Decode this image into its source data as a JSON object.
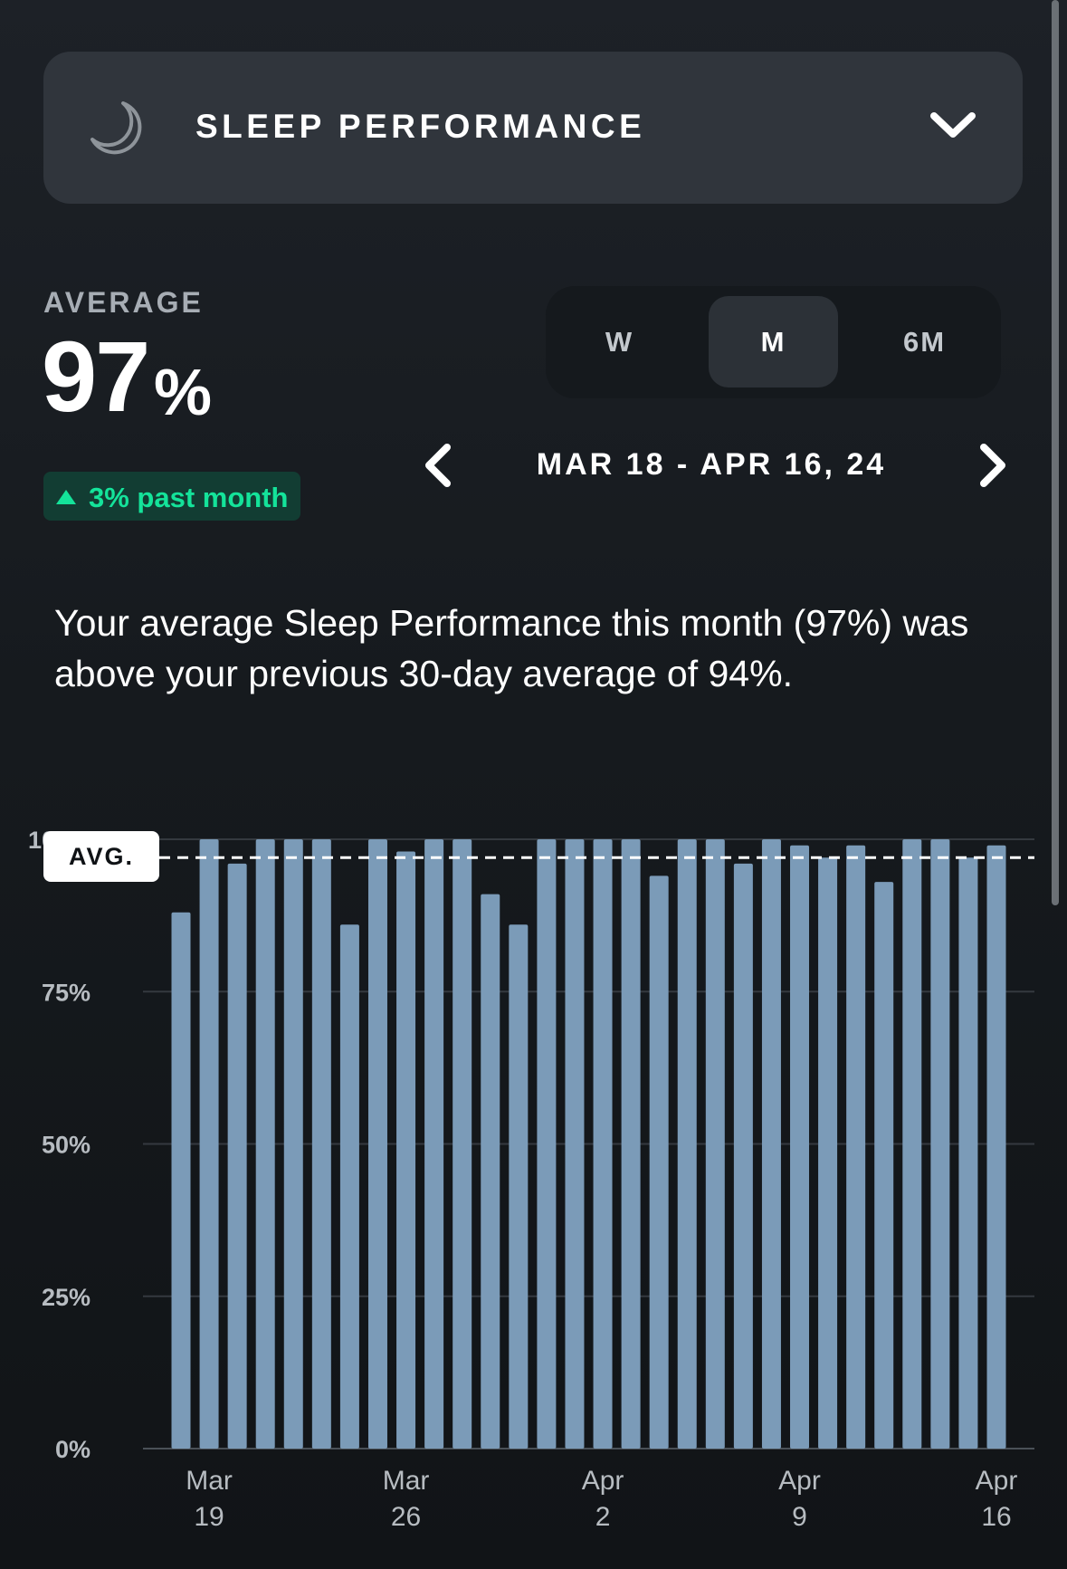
{
  "header": {
    "title": "SLEEP PERFORMANCE",
    "icon": "moon-icon",
    "dropdown_icon": "chevron-down-icon"
  },
  "average": {
    "label": "AVERAGE",
    "value": "97",
    "unit": "%",
    "trend": {
      "text": "3% past month",
      "direction": "up",
      "color": "#14e39a"
    }
  },
  "range_tabs": [
    {
      "label": "W",
      "active": false
    },
    {
      "label": "M",
      "active": true
    },
    {
      "label": "6M",
      "active": false
    }
  ],
  "date_nav": {
    "range": "MAR 18 - APR 16, 24",
    "prev_icon": "chevron-left-icon",
    "next_icon": "chevron-right-icon"
  },
  "description": "Your average Sleep Performance this month (97%) was above your previous 30-day average of 94%.",
  "avg_tag": "AVG.",
  "colors": {
    "bar": "#7b9bb8",
    "accent": "#14e39a"
  },
  "chart_data": {
    "type": "bar",
    "y_unit": "%",
    "ylim": [
      0,
      100
    ],
    "y_ticks": [
      "0%",
      "25%",
      "50%",
      "75%",
      "100%"
    ],
    "grid": true,
    "average_line": 97,
    "x_ticks": [
      {
        "month": "Mar",
        "day": "19"
      },
      {
        "month": "Mar",
        "day": "26"
      },
      {
        "month": "Apr",
        "day": "2"
      },
      {
        "month": "Apr",
        "day": "9"
      },
      {
        "month": "Apr",
        "day": "16"
      }
    ],
    "categories": [
      "Mar 18",
      "Mar 19",
      "Mar 20",
      "Mar 21",
      "Mar 22",
      "Mar 23",
      "Mar 24",
      "Mar 25",
      "Mar 26",
      "Mar 27",
      "Mar 28",
      "Mar 29",
      "Mar 30",
      "Mar 31",
      "Apr 1",
      "Apr 2",
      "Apr 3",
      "Apr 4",
      "Apr 5",
      "Apr 6",
      "Apr 7",
      "Apr 8",
      "Apr 9",
      "Apr 10",
      "Apr 11",
      "Apr 12",
      "Apr 13",
      "Apr 14",
      "Apr 15",
      "Apr 16"
    ],
    "values": [
      88,
      100,
      96,
      100,
      100,
      100,
      86,
      100,
      98,
      100,
      100,
      91,
      86,
      100,
      100,
      100,
      100,
      94,
      100,
      100,
      96,
      100,
      99,
      97,
      99,
      93,
      100,
      100,
      97,
      99
    ]
  }
}
